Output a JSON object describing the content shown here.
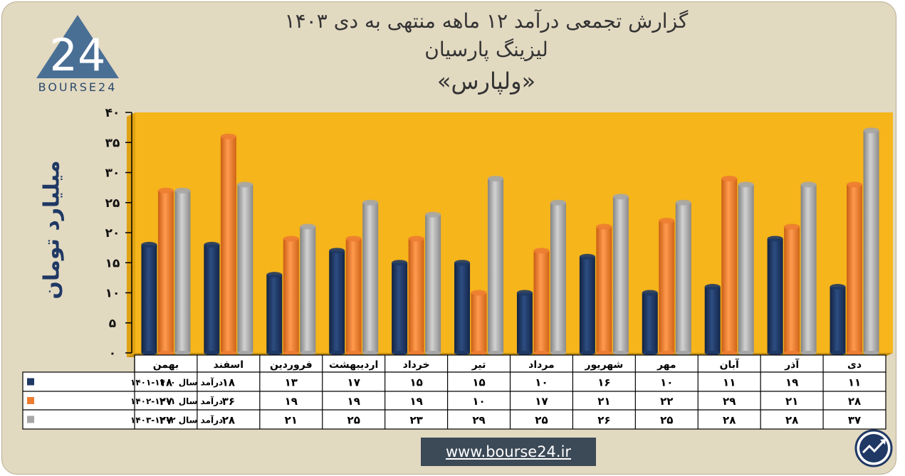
{
  "header": {
    "title_line1": "گزارش تجمعی درآمد ۱۲ ماهه منتهی به دی ۱۴۰۳",
    "title_line2": "لیزینگ پارسیان",
    "title_line3": "«ولپارس»"
  },
  "logo": {
    "text": "BOURSE24",
    "mark_text": "24"
  },
  "footer": {
    "url": "www.bourse24.ir"
  },
  "colors": {
    "plot_background": "#f6b51b",
    "series_1": "#1f3864",
    "series_2": "#ed7d31",
    "series_3": "#a6a6a6"
  },
  "icons": {
    "corner": "growth-chart-icon"
  },
  "chart_data": {
    "type": "bar",
    "ylabel": "میلیارد تومان",
    "ylim": [
      0,
      40
    ],
    "yticks": [
      "0",
      "5",
      "10",
      "15",
      "20",
      "25",
      "30",
      "35",
      "40"
    ],
    "ytick_labels": [
      "۰",
      "۵",
      "۱۰",
      "۱۵",
      "۲۰",
      "۲۵",
      "۳۰",
      "۳۵",
      "۴۰"
    ],
    "categories": [
      "بهمن",
      "اسفند",
      "فروردین",
      "اردیبهشت",
      "خرداد",
      "تیر",
      "مرداد",
      "شهریور",
      "مهر",
      "آبان",
      "آذر",
      "دی"
    ],
    "series": [
      {
        "name": "درآمد  سال ۱۴۰۰-۱۴۰۱",
        "values": [
          18,
          18,
          13,
          17,
          15,
          15,
          10,
          16,
          10,
          11,
          19,
          11
        ],
        "labels": [
          "۱۸",
          "۱۸",
          "۱۳",
          "۱۷",
          "۱۵",
          "۱۵",
          "۱۰",
          "۱۶",
          "۱۰",
          "۱۱",
          "۱۹",
          "۱۱"
        ]
      },
      {
        "name": "درآمد سال ۱۴۰۱-۱۴۰۲",
        "values": [
          27,
          36,
          19,
          19,
          19,
          10,
          17,
          21,
          22,
          29,
          21,
          28
        ],
        "labels": [
          "۲۷",
          "۳۶",
          "۱۹",
          "۱۹",
          "۱۹",
          "۱۰",
          "۱۷",
          "۲۱",
          "۲۲",
          "۲۹",
          "۲۱",
          "۲۸"
        ]
      },
      {
        "name": "درآمد سال ۱۴۰۲-۱۴۰۳",
        "values": [
          27,
          28,
          21,
          25,
          23,
          29,
          25,
          26,
          25,
          28,
          28,
          37
        ],
        "labels": [
          "۲۷",
          "۲۸",
          "۲۱",
          "۲۵",
          "۲۳",
          "۲۹",
          "۲۵",
          "۲۶",
          "۲۵",
          "۲۸",
          "۲۸",
          "۳۷"
        ]
      }
    ],
    "legend_placement": "data-table-left",
    "grid": false
  }
}
